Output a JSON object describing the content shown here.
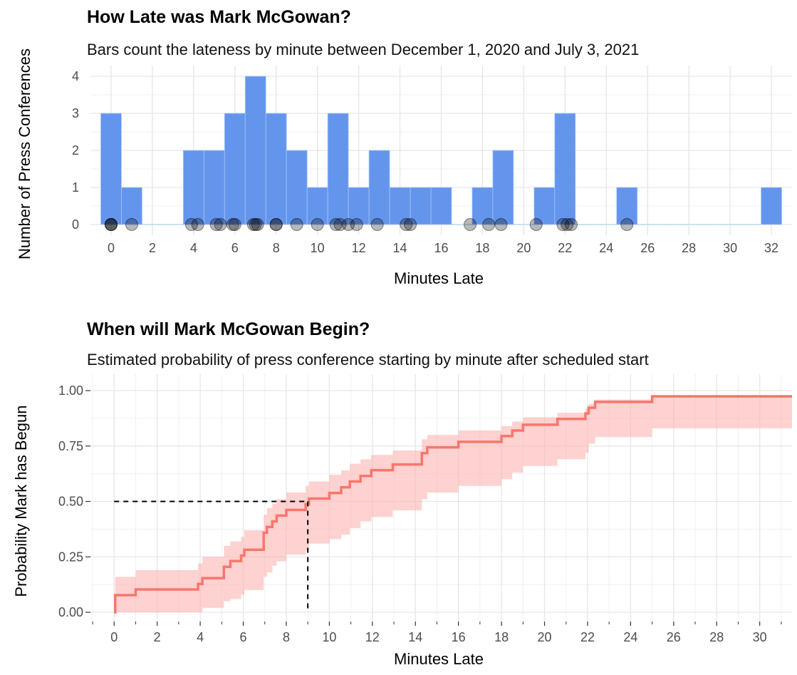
{
  "chart_data": [
    {
      "type": "bar",
      "title": "How Late was Mark McGowan?",
      "subtitle": "Bars count the lateness by minute between December 1, 2020 and July 3, 2021",
      "xlabel": "Minutes Late",
      "ylabel": "Number of Press Conferences",
      "xlim": [
        -1,
        33
      ],
      "ylim": [
        0,
        4
      ],
      "xticks": [
        0,
        2,
        4,
        6,
        8,
        10,
        12,
        14,
        16,
        18,
        20,
        22,
        24,
        26,
        28,
        30,
        32
      ],
      "yticks": [
        0,
        1,
        2,
        3,
        4
      ],
      "grid": true,
      "bar_color": "#6495ED",
      "categories": [
        0,
        1,
        2,
        3,
        4,
        5,
        6,
        7,
        8,
        9,
        10,
        11,
        12,
        13,
        14,
        15,
        16,
        17,
        18,
        19,
        20,
        21,
        22,
        23,
        24,
        25,
        26,
        27,
        28,
        29,
        30,
        31,
        32
      ],
      "values": [
        3,
        1,
        0,
        0,
        2,
        2,
        3,
        4,
        3,
        2,
        1,
        3,
        1,
        2,
        1,
        1,
        1,
        0,
        1,
        2,
        0,
        1,
        3,
        0,
        0,
        1,
        0,
        0,
        0,
        0,
        0,
        0,
        1
      ],
      "points": [
        0,
        0,
        0,
        1,
        3.9,
        4.2,
        5.1,
        5.3,
        5.9,
        6,
        6.9,
        7,
        7.1,
        8,
        8,
        9,
        10,
        10.9,
        11.1,
        11.5,
        11.9,
        12.9,
        14.3,
        14.5,
        17.4,
        18.3,
        18.9,
        20.6,
        21.9,
        22.1,
        22.3,
        25
      ],
      "point_color": "#000000"
    },
    {
      "type": "line",
      "title": "When will Mark McGowan Begin?",
      "subtitle": "Estimated probability of press conference starting by minute after scheduled start",
      "xlabel": "Minutes Late",
      "ylabel": "Probability Mark has Begun",
      "xlim": [
        -1.1,
        31.5
      ],
      "ylim": [
        0,
        1
      ],
      "xticks": [
        0,
        2,
        4,
        6,
        8,
        10,
        12,
        14,
        16,
        18,
        20,
        22,
        24,
        26,
        28,
        30
      ],
      "yticks": [
        "0.00",
        "0.25",
        "0.50",
        "0.75",
        "1.00"
      ],
      "grid": true,
      "line_color": "#F8766D",
      "band_color": "#FBB4B0",
      "series": [
        {
          "x": [
            0,
            0.05,
            1,
            3.9,
            4.1,
            5.1,
            5.4,
            5.9,
            6.05,
            6.95,
            7.1,
            7.35,
            7.55,
            8,
            8.9,
            9.05,
            10,
            10.55,
            10.95,
            11.45,
            11.95,
            12.95,
            14.3,
            14.55,
            16,
            18,
            18.5,
            19,
            20.6,
            21.9,
            22.05,
            22.35,
            25,
            31.5
          ],
          "y": [
            0,
            0.077,
            0.103,
            0.128,
            0.154,
            0.205,
            0.231,
            0.256,
            0.282,
            0.359,
            0.385,
            0.41,
            0.436,
            0.462,
            0.487,
            0.513,
            0.538,
            0.564,
            0.59,
            0.615,
            0.641,
            0.667,
            0.718,
            0.744,
            0.769,
            0.795,
            0.82,
            0.846,
            0.872,
            0.897,
            0.923,
            0.949,
            0.974,
            0.974
          ],
          "lower": [
            0,
            0.0,
            0.0,
            0.0,
            0.02,
            0.05,
            0.06,
            0.08,
            0.1,
            0.16,
            0.18,
            0.21,
            0.23,
            0.26,
            0.28,
            0.31,
            0.33,
            0.35,
            0.38,
            0.41,
            0.43,
            0.46,
            0.51,
            0.54,
            0.57,
            0.6,
            0.63,
            0.66,
            0.69,
            0.72,
            0.76,
            0.79,
            0.83,
            0.83
          ],
          "upper": [
            0,
            0.16,
            0.19,
            0.22,
            0.25,
            0.3,
            0.32,
            0.34,
            0.37,
            0.44,
            0.47,
            0.49,
            0.51,
            0.54,
            0.57,
            0.59,
            0.62,
            0.64,
            0.67,
            0.69,
            0.71,
            0.73,
            0.78,
            0.8,
            0.82,
            0.84,
            0.86,
            0.88,
            0.9,
            0.92,
            0.94,
            0.96,
            0.98,
            0.98
          ]
        }
      ],
      "reference": {
        "x": 9,
        "y": 0.5,
        "style": "dashed"
      }
    }
  ]
}
